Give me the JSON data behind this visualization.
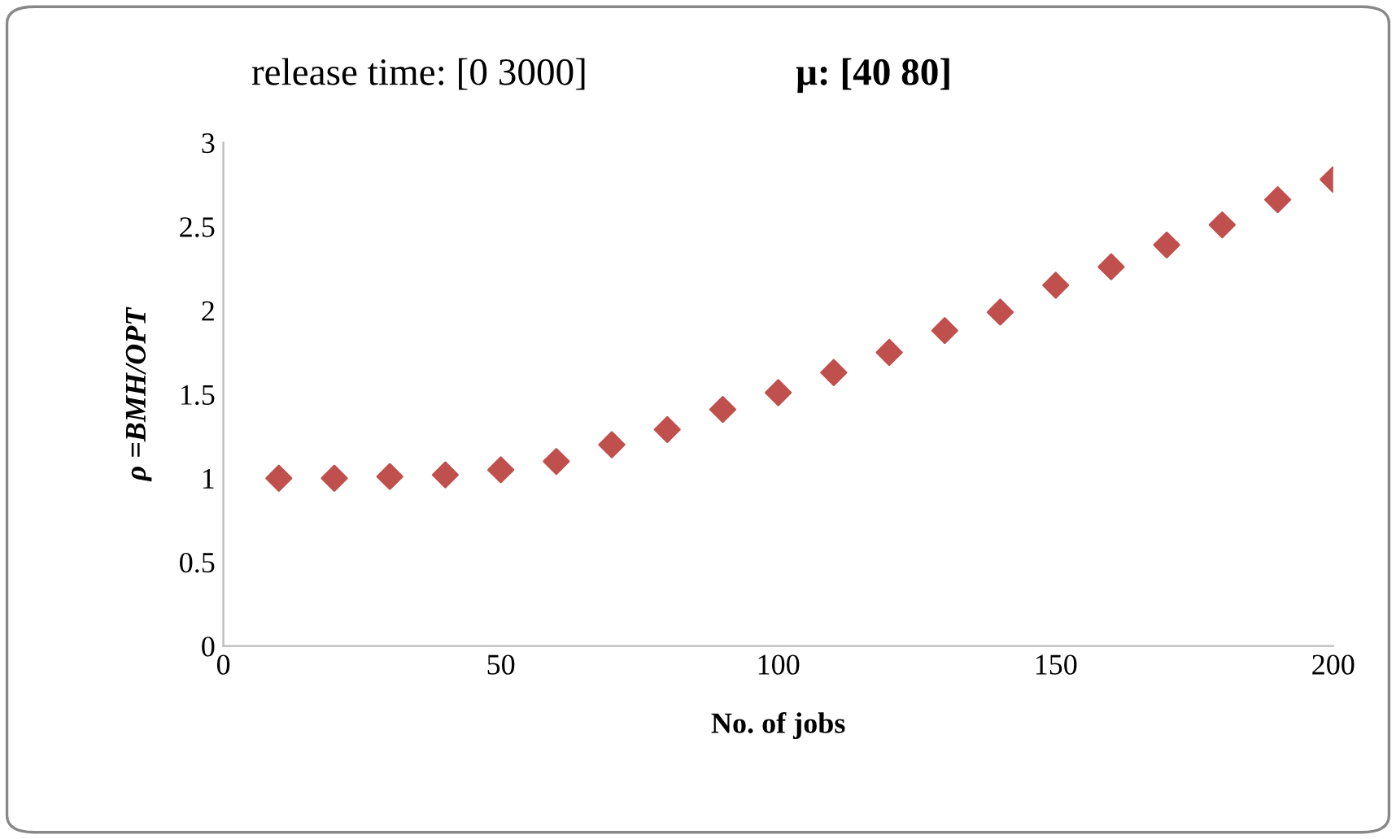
{
  "chart_data": {
    "type": "scatter",
    "annotations": [
      "release time: [0 3000]",
      "μ: [40 80]"
    ],
    "xlabel": "No. of jobs",
    "ylabel": "ρ =BMH/OPT",
    "x": [
      10,
      20,
      30,
      40,
      50,
      60,
      70,
      80,
      90,
      100,
      110,
      120,
      130,
      140,
      150,
      160,
      170,
      180,
      190,
      200
    ],
    "series": [
      {
        "color": "#c0504d",
        "values": [
          1.0,
          1.0,
          1.01,
          1.02,
          1.05,
          1.1,
          1.2,
          1.29,
          1.41,
          1.51,
          1.63,
          1.75,
          1.88,
          1.99,
          2.15,
          2.26,
          2.39,
          2.51,
          2.66,
          2.78
        ]
      }
    ],
    "marker": "diamond",
    "xlim": [
      0,
      200
    ],
    "xticks": [
      0,
      50,
      100,
      150,
      200
    ],
    "ylim": [
      0,
      3
    ],
    "yticks": [
      0,
      0.5,
      1,
      1.5,
      2,
      2.5,
      3
    ],
    "grid": false,
    "legend": false
  }
}
